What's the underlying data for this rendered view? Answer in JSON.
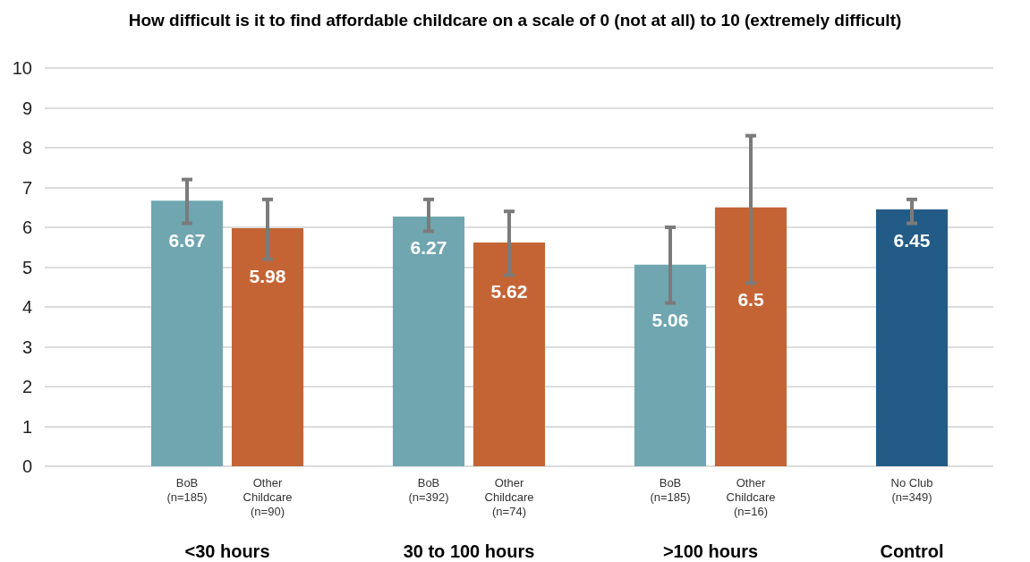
{
  "chart_data": {
    "type": "bar",
    "title": "How difficult is it to find affordable childcare on a scale of 0 (not at all) to 10 (extremely difficult)",
    "categories": [
      "BoB\n(n=185)",
      "Other\nChildcare\n(n=90)",
      null,
      "BoB\n(n=392)",
      "Other\nChildcare\n(n=74)",
      null,
      "BoB\n(n=185)",
      "Other\nChildcare\n(n=16)",
      null,
      "No Club\n(n=349)"
    ],
    "values": [
      6.67,
      5.98,
      null,
      6.27,
      5.62,
      null,
      5.06,
      6.5,
      null,
      6.45
    ],
    "colors": [
      "#6fa6b0",
      "#c46435",
      null,
      "#6fa6b0",
      "#c46435",
      null,
      "#6fa6b0",
      "#c46435",
      null,
      "#235b87"
    ],
    "errors": [
      [
        6.1,
        7.2
      ],
      [
        5.2,
        6.7
      ],
      null,
      [
        5.9,
        6.7
      ],
      [
        4.8,
        6.4
      ],
      null,
      [
        4.1,
        6.0
      ],
      [
        4.6,
        8.3
      ],
      null,
      [
        6.1,
        6.7
      ]
    ],
    "ylim": [
      0,
      10
    ],
    "yticks": [
      0,
      1,
      2,
      3,
      4,
      5,
      6,
      7,
      8,
      9,
      10
    ],
    "grid": "y",
    "data_labels": true,
    "annotations": [
      "<30 hours",
      "30 to 100 hours",
      ">100 hours",
      "Control"
    ]
  }
}
